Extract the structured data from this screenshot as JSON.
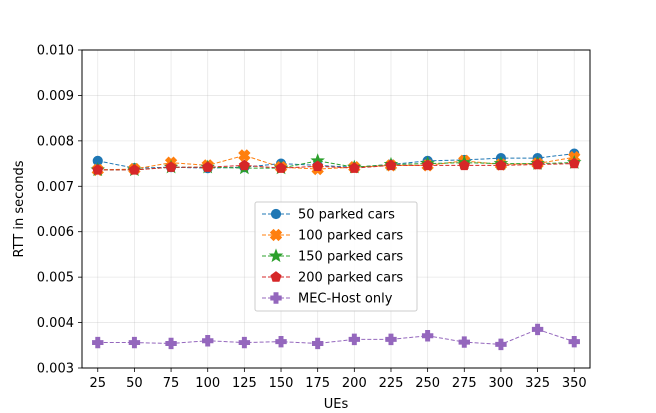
{
  "chart_data": {
    "type": "line",
    "title": "",
    "xlabel": "UEs",
    "ylabel": "RTT in seconds",
    "x": [
      25,
      50,
      75,
      100,
      125,
      150,
      175,
      200,
      225,
      250,
      275,
      300,
      325,
      350
    ],
    "xticks": [
      "25",
      "50",
      "75",
      "100",
      "125",
      "150",
      "175",
      "200",
      "225",
      "250",
      "275",
      "300",
      "325",
      "350"
    ],
    "ylim": [
      0.003,
      0.01
    ],
    "yticks": [
      "0.003",
      "0.004",
      "0.005",
      "0.006",
      "0.007",
      "0.008",
      "0.009",
      "0.010"
    ],
    "grid": true,
    "legend_position": "center",
    "series": [
      {
        "name": "50 parked cars",
        "color": "#1f77b4",
        "marker": "circle",
        "values": [
          0.00756,
          0.0074,
          0.00742,
          0.0074,
          0.00742,
          0.0075,
          0.00746,
          0.00742,
          0.00748,
          0.00756,
          0.00758,
          0.00762,
          0.00762,
          0.00772
        ]
      },
      {
        "name": "100 parked cars",
        "color": "#ff7f0e",
        "marker": "x-filled",
        "values": [
          0.00736,
          0.00738,
          0.00752,
          0.00746,
          0.00768,
          0.00742,
          0.00738,
          0.00742,
          0.00746,
          0.00746,
          0.00756,
          0.00748,
          0.0075,
          0.00764
        ]
      },
      {
        "name": "150 parked cars",
        "color": "#2ca02c",
        "marker": "star",
        "values": [
          0.00736,
          0.00736,
          0.00742,
          0.00742,
          0.0074,
          0.0074,
          0.00756,
          0.00742,
          0.00748,
          0.0075,
          0.00752,
          0.0075,
          0.0075,
          0.00752
        ]
      },
      {
        "name": "200 parked cars",
        "color": "#d62728",
        "marker": "pentagon",
        "values": [
          0.00736,
          0.00736,
          0.00742,
          0.00742,
          0.00746,
          0.0074,
          0.00744,
          0.0074,
          0.00746,
          0.00746,
          0.00746,
          0.00746,
          0.00748,
          0.0075
        ]
      },
      {
        "name": "MEC-Host only",
        "color": "#9467bd",
        "marker": "plus-filled",
        "values": [
          0.00356,
          0.00356,
          0.00354,
          0.0036,
          0.00356,
          0.00358,
          0.00354,
          0.00363,
          0.00363,
          0.00371,
          0.00357,
          0.00352,
          0.00385,
          0.00358
        ]
      }
    ]
  }
}
